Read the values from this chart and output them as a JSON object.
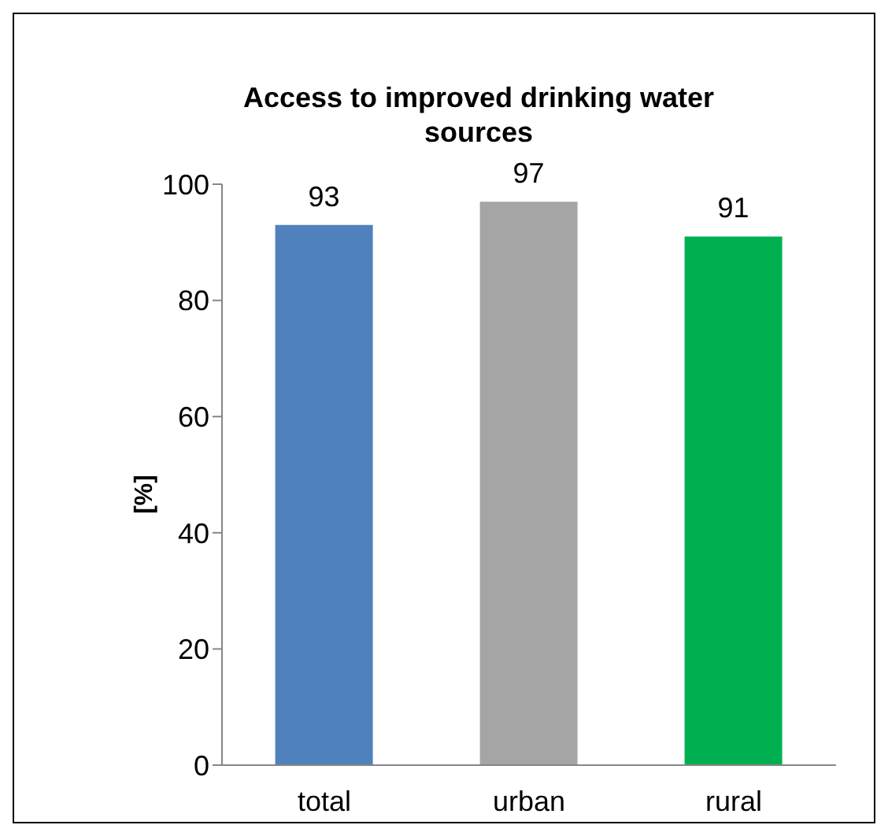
{
  "chart_data": {
    "type": "bar",
    "title": "Access to improved drinking water sources",
    "ylabel": "[%]",
    "categories": [
      "total",
      "urban",
      "rural"
    ],
    "values": [
      93,
      97,
      91
    ],
    "colors": [
      "#4f81bd",
      "#a5a5a5",
      "#00b050"
    ],
    "ylim": [
      0,
      100
    ],
    "yticks": [
      0,
      20,
      40,
      60,
      80,
      100
    ],
    "grid": false,
    "data_labels": true
  }
}
